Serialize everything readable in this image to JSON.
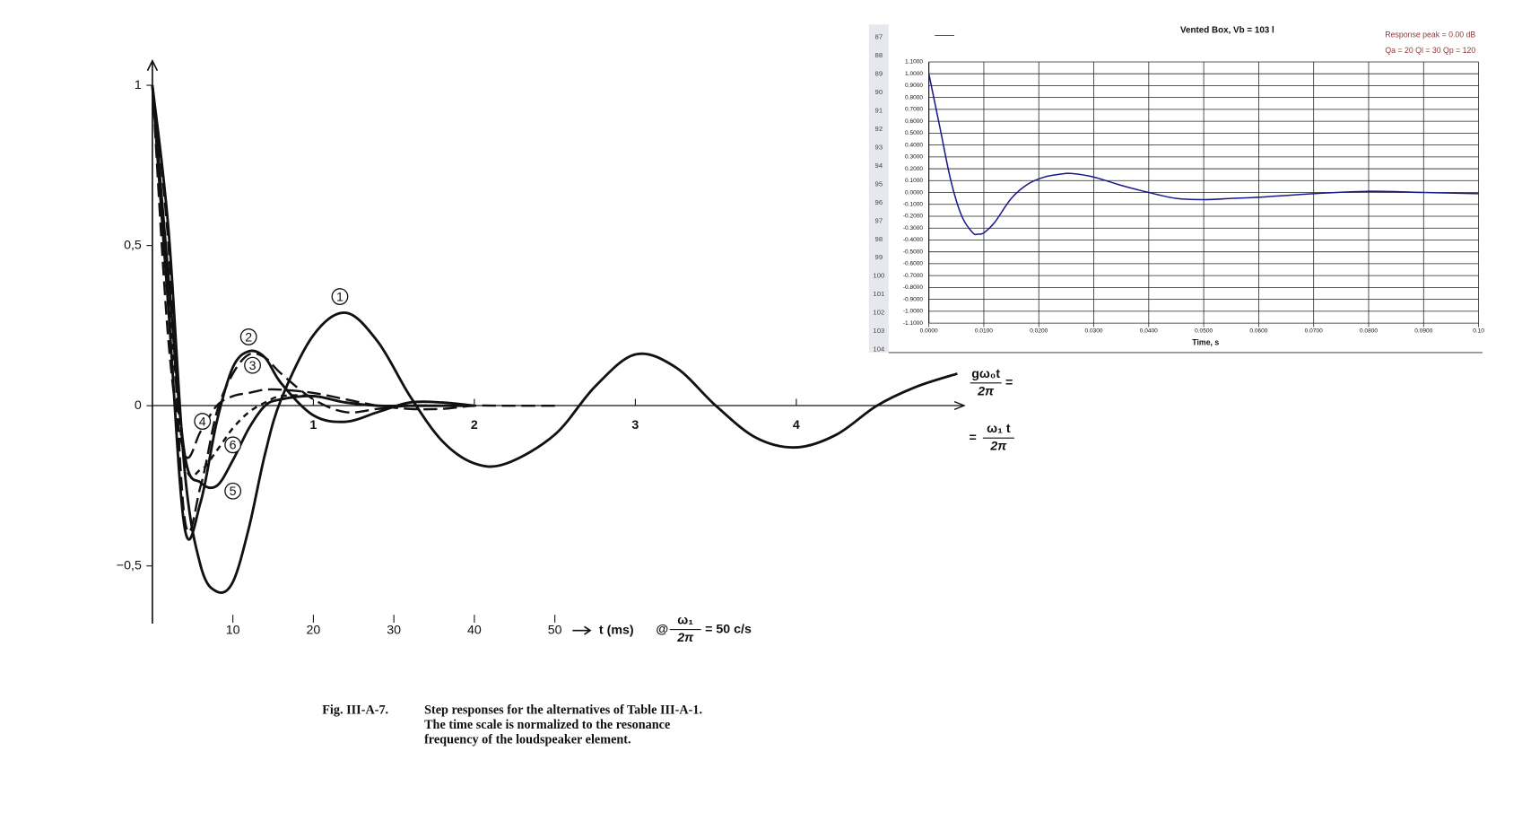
{
  "chart_data": [
    {
      "type": "line",
      "x": [
        0,
        0.1,
        0.2,
        0.3,
        0.4,
        0.5,
        0.6,
        0.7,
        0.8,
        1.0,
        1.2,
        1.4,
        1.6,
        1.8,
        2.0,
        2.2,
        2.5,
        2.75,
        3.0,
        3.25,
        3.5,
        3.75,
        4.0,
        4.25,
        4.5,
        4.75,
        5.0
      ],
      "series": [
        {
          "name": "1",
          "color": "#111111",
          "dash": "solid",
          "values": [
            1,
            0.55,
            -0.2,
            -0.5,
            -0.58,
            -0.55,
            -0.38,
            -0.15,
            0.02,
            0.22,
            0.29,
            0.2,
            0.03,
            -0.11,
            -0.18,
            -0.18,
            -0.09,
            0.06,
            0.16,
            0.12,
            0.0,
            -0.1,
            -0.13,
            -0.09,
            0.0,
            0.06,
            0.1
          ]
        },
        {
          "name": "2",
          "color": "#111111",
          "dash": "solid",
          "values": [
            1,
            0.3,
            -0.38,
            -0.3,
            -0.05,
            0.12,
            0.17,
            0.15,
            0.07,
            -0.03,
            -0.05,
            -0.02,
            0.01,
            0.01,
            0.0,
            null,
            null,
            null,
            null,
            null,
            null,
            null,
            null,
            null,
            null,
            null,
            null
          ]
        },
        {
          "name": "3",
          "color": "#111111",
          "dash": "long",
          "values": [
            1,
            0.5,
            -0.35,
            -0.25,
            -0.02,
            0.1,
            0.16,
            0.15,
            0.1,
            0.02,
            -0.02,
            -0.01,
            0.0,
            0.0,
            null,
            null,
            null,
            null,
            null,
            null,
            null,
            null,
            null,
            null,
            null,
            null,
            null
          ]
        },
        {
          "name": "4",
          "color": "#111111",
          "dash": "long",
          "values": [
            1,
            0.2,
            -0.15,
            -0.08,
            0.0,
            0.03,
            0.04,
            0.05,
            0.05,
            0.04,
            0.02,
            0.0,
            -0.01,
            -0.01,
            0.0,
            0.0,
            0.0,
            null,
            null,
            null,
            null,
            null,
            null,
            null,
            null,
            null,
            null
          ]
        },
        {
          "name": "5",
          "color": "#111111",
          "dash": "solid",
          "values": [
            1,
            0.4,
            -0.15,
            -0.24,
            -0.25,
            -0.17,
            -0.07,
            0.0,
            0.02,
            0.03,
            0.01,
            0.0,
            0.0,
            0.0,
            0.0,
            null,
            null,
            null,
            null,
            null,
            null,
            null,
            null,
            null,
            null,
            null,
            null
          ]
        },
        {
          "name": "6",
          "color": "#111111",
          "dash": "short",
          "values": [
            1,
            0.35,
            -0.17,
            -0.2,
            -0.14,
            -0.07,
            -0.02,
            0.01,
            0.03,
            0.03,
            0.01,
            0.0,
            0.0,
            0.0,
            null,
            null,
            null,
            null,
            null,
            null,
            null,
            null,
            null,
            null,
            null,
            null,
            null
          ]
        }
      ],
      "xlim": [
        0,
        5
      ],
      "xticks": [
        1,
        2,
        3,
        4
      ],
      "x2lim": [
        0,
        100
      ],
      "x2ticks": [
        10,
        20,
        30,
        40,
        50
      ],
      "ylim": [
        -0.68,
        1.07
      ],
      "yticks": [
        {
          "value": -0.5,
          "label": "−0,5"
        },
        0,
        {
          "value": 0.5,
          "label": "0,5"
        },
        1
      ],
      "x2_label": "t (ms)",
      "frequency_note": {
        "prefix": "@",
        "numerator": "ω₁",
        "denominator": "2π",
        "suffix": "= 50 c/s"
      },
      "x_label_upper": {
        "numerator": "gω₀t",
        "denominator": "2π",
        "suffix": "="
      },
      "x_label_lower": {
        "prefix": "=",
        "numerator": "ω₁ t",
        "denominator": "2π"
      },
      "caption": {
        "label": "Fig. III-A-7.",
        "lines": [
          "Step responses for the alternatives of Table III-A-1.",
          "The time scale is normalized to the resonance",
          "frequency of the loudspeaker element."
        ]
      }
    },
    {
      "type": "line",
      "title": "Vented Box, Vb = 103 l",
      "annotations": [
        "Response peak = 0.00 dB",
        "Qa = 20  Ql = 30  Qp = 120"
      ],
      "x_label": "Time, s",
      "row_headers": [
        "87",
        "88",
        "89",
        "90",
        "91",
        "92",
        "93",
        "94",
        "95",
        "96",
        "97",
        "98",
        "99",
        "100",
        "101",
        "102",
        "103",
        "104"
      ],
      "x": [
        0,
        0.002,
        0.004,
        0.006,
        0.008,
        0.009,
        0.01,
        0.012,
        0.015,
        0.018,
        0.021,
        0.024,
        0.026,
        0.03,
        0.035,
        0.04,
        0.045,
        0.05,
        0.055,
        0.06,
        0.07,
        0.08,
        0.09,
        0.1
      ],
      "series": [
        {
          "color": "#1a1a8c",
          "values": [
            1.0,
            0.55,
            0.1,
            -0.2,
            -0.34,
            -0.35,
            -0.34,
            -0.25,
            -0.05,
            0.07,
            0.13,
            0.155,
            0.16,
            0.13,
            0.06,
            0.0,
            -0.05,
            -0.06,
            -0.05,
            -0.04,
            -0.01,
            0.01,
            0.0,
            -0.01
          ]
        }
      ],
      "xlim": [
        0,
        0.1
      ],
      "xticks": [
        {
          "value": 0,
          "label": "0.0000"
        },
        {
          "value": 0.01,
          "label": "0.0100"
        },
        {
          "value": 0.02,
          "label": "0.0200"
        },
        {
          "value": 0.03,
          "label": "0.0300"
        },
        {
          "value": 0.04,
          "label": "0.0400"
        },
        {
          "value": 0.05,
          "label": "0.0500"
        },
        {
          "value": 0.06,
          "label": "0.0600"
        },
        {
          "value": 0.07,
          "label": "0.0700"
        },
        {
          "value": 0.08,
          "label": "0.0800"
        },
        {
          "value": 0.09,
          "label": "0.0900"
        },
        {
          "value": 0.1,
          "label": "0.10"
        }
      ],
      "ylim": [
        -1.1,
        1.1
      ],
      "yticks": [
        {
          "value": 1.1,
          "label": "1.1000"
        },
        {
          "value": 1.0,
          "label": "1.0000"
        },
        {
          "value": 0.9,
          "label": "0.9000"
        },
        {
          "value": 0.8,
          "label": "0.8000"
        },
        {
          "value": 0.7,
          "label": "0.7000"
        },
        {
          "value": 0.6,
          "label": "0.6000"
        },
        {
          "value": 0.5,
          "label": "0.5000"
        },
        {
          "value": 0.4,
          "label": "0.4000"
        },
        {
          "value": 0.3,
          "label": "0.3000"
        },
        {
          "value": 0.2,
          "label": "0.2000"
        },
        {
          "value": 0.1,
          "label": "0.1000"
        },
        {
          "value": 0,
          "label": "0.0000"
        },
        {
          "value": -0.1,
          "label": "-0.1000"
        },
        {
          "value": -0.2,
          "label": "-0.2000"
        },
        {
          "value": -0.3,
          "label": "-0.3000"
        },
        {
          "value": -0.4,
          "label": "-0.4000"
        },
        {
          "value": -0.5,
          "label": "-0.5000"
        },
        {
          "value": -0.6,
          "label": "-0.6000"
        },
        {
          "value": -0.7,
          "label": "-0.7000"
        },
        {
          "value": -0.8,
          "label": "-0.8000"
        },
        {
          "value": -0.9,
          "label": "-0.9000"
        },
        {
          "value": -1.0,
          "label": "-1.0000"
        },
        {
          "value": -1.1,
          "label": "-1.1000"
        }
      ],
      "grid": true
    }
  ]
}
